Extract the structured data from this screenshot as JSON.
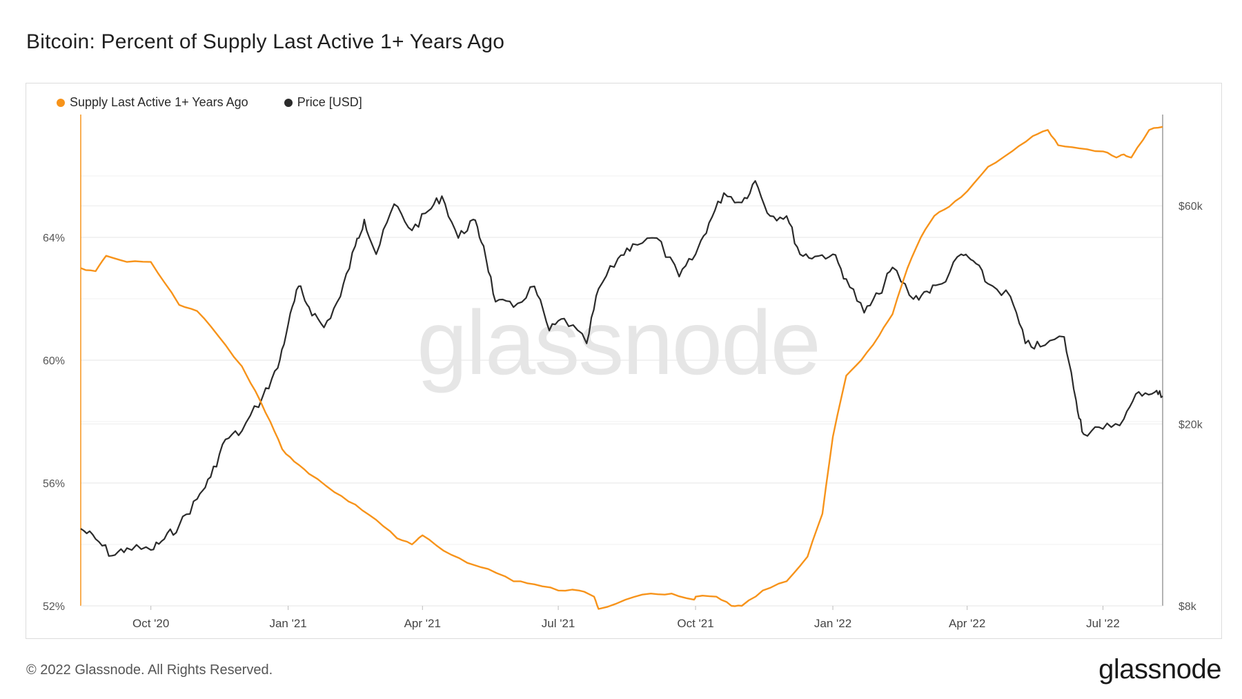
{
  "header": {
    "title": "Bitcoin: Percent of Supply Last Active 1+ Years Ago"
  },
  "legend": {
    "items": [
      {
        "label": "Supply Last Active 1+ Years Ago",
        "color": "#f7931a"
      },
      {
        "label": "Price [USD]",
        "color": "#2b2b2b"
      }
    ]
  },
  "watermark": "glassnode",
  "footer": {
    "copyright": "© 2022 Glassnode. All Rights Reserved.",
    "logo": "glassnode"
  },
  "chart_data": {
    "type": "line",
    "title": "Bitcoin: Percent of Supply Last Active 1+ Years Ago",
    "x_ticks": [
      "Oct '20",
      "Jan '21",
      "Apr '21",
      "Jul '21",
      "Oct '21",
      "Jan '22",
      "Apr '22",
      "Jul '22"
    ],
    "x_range": [
      "2020-08-15",
      "2022-08-10"
    ],
    "y_left": {
      "ticks": [
        "52%",
        "56%",
        "60%",
        "64%"
      ],
      "tick_values": [
        52,
        56,
        60,
        64
      ],
      "range": [
        52,
        68
      ],
      "unit": "%"
    },
    "y_right": {
      "ticks": [
        "$8k",
        "$20k",
        "$60k"
      ],
      "tick_values": [
        8000,
        20000,
        60000
      ],
      "range": [
        8000,
        95000
      ],
      "scale": "log"
    },
    "grid": true,
    "legend_position": "top-left",
    "series": [
      {
        "name": "Supply Last Active 1+ Years Ago",
        "axis": "left",
        "color": "#f7931a",
        "x": [
          "2020-08-15",
          "2020-08-25",
          "2020-09-01",
          "2020-09-15",
          "2020-10-01",
          "2020-10-15",
          "2020-10-20",
          "2020-11-01",
          "2020-11-15",
          "2020-12-01",
          "2020-12-10",
          "2020-12-20",
          "2020-12-28",
          "2021-01-05",
          "2021-01-15",
          "2021-02-01",
          "2021-02-15",
          "2021-03-01",
          "2021-03-15",
          "2021-03-25",
          "2021-04-01",
          "2021-04-15",
          "2021-05-01",
          "2021-05-15",
          "2021-06-01",
          "2021-06-15",
          "2021-07-01",
          "2021-07-15",
          "2021-07-25",
          "2021-07-28",
          "2021-08-15",
          "2021-09-01",
          "2021-09-15",
          "2021-09-30",
          "2021-10-01",
          "2021-10-15",
          "2021-10-25",
          "2021-11-01",
          "2021-11-15",
          "2021-12-01",
          "2021-12-15",
          "2021-12-25",
          "2022-01-01",
          "2022-01-10",
          "2022-01-20",
          "2022-02-01",
          "2022-02-10",
          "2022-02-20",
          "2022-03-01",
          "2022-03-10",
          "2022-03-20",
          "2022-04-01",
          "2022-04-15",
          "2022-05-01",
          "2022-05-15",
          "2022-05-25",
          "2022-06-01",
          "2022-06-15",
          "2022-07-01",
          "2022-07-10",
          "2022-07-15",
          "2022-07-20",
          "2022-08-01",
          "2022-08-10"
        ],
        "values": [
          63.0,
          62.9,
          63.4,
          63.2,
          63.2,
          62.2,
          61.8,
          61.6,
          60.8,
          59.8,
          59.0,
          58.0,
          57.1,
          56.7,
          56.3,
          55.7,
          55.3,
          54.8,
          54.2,
          54.0,
          54.3,
          53.8,
          53.4,
          53.2,
          52.8,
          52.7,
          52.5,
          52.5,
          52.3,
          51.9,
          52.2,
          52.4,
          52.4,
          52.2,
          52.3,
          52.3,
          52.0,
          52.0,
          52.5,
          52.8,
          53.6,
          55.0,
          57.5,
          59.5,
          60.0,
          60.8,
          61.5,
          63.0,
          64.0,
          64.7,
          65.0,
          65.5,
          66.3,
          66.8,
          67.3,
          67.5,
          67.0,
          66.9,
          66.8,
          66.6,
          66.7,
          66.6,
          67.5,
          67.6
        ]
      },
      {
        "name": "Price [USD]",
        "axis": "right",
        "color": "#2b2b2b",
        "x": [
          "2020-08-15",
          "2020-08-25",
          "2020-09-05",
          "2020-09-15",
          "2020-10-01",
          "2020-10-10",
          "2020-10-20",
          "2020-11-01",
          "2020-11-10",
          "2020-11-20",
          "2020-12-01",
          "2020-12-15",
          "2020-12-25",
          "2021-01-01",
          "2021-01-08",
          "2021-01-15",
          "2021-01-25",
          "2021-02-05",
          "2021-02-15",
          "2021-02-21",
          "2021-03-01",
          "2021-03-13",
          "2021-03-25",
          "2021-04-05",
          "2021-04-14",
          "2021-04-25",
          "2021-05-05",
          "2021-05-12",
          "2021-05-20",
          "2021-06-01",
          "2021-06-15",
          "2021-06-25",
          "2021-07-05",
          "2021-07-20",
          "2021-07-28",
          "2021-08-10",
          "2021-08-20",
          "2021-09-05",
          "2021-09-20",
          "2021-10-01",
          "2021-10-10",
          "2021-10-20",
          "2021-11-01",
          "2021-11-10",
          "2021-11-20",
          "2021-12-01",
          "2021-12-10",
          "2021-12-20",
          "2022-01-01",
          "2022-01-10",
          "2022-01-22",
          "2022-02-01",
          "2022-02-10",
          "2022-02-24",
          "2022-03-05",
          "2022-03-15",
          "2022-03-28",
          "2022-04-05",
          "2022-04-15",
          "2022-04-30",
          "2022-05-10",
          "2022-05-20",
          "2022-06-05",
          "2022-06-13",
          "2022-06-18",
          "2022-07-01",
          "2022-07-15",
          "2022-07-25",
          "2022-08-05",
          "2022-08-10"
        ],
        "values": [
          11800,
          11200,
          10300,
          10700,
          10600,
          11200,
          12000,
          13700,
          15300,
          18500,
          19300,
          23000,
          26500,
          33000,
          40000,
          36000,
          32500,
          38000,
          49000,
          56000,
          47000,
          60500,
          53000,
          58500,
          63000,
          51000,
          56000,
          49000,
          37000,
          36000,
          40000,
          32000,
          34000,
          30000,
          39500,
          46000,
          49500,
          51000,
          42000,
          47000,
          55000,
          64000,
          61000,
          68000,
          57000,
          57000,
          47000,
          46500,
          47000,
          41500,
          35000,
          38500,
          44000,
          37500,
          39000,
          40500,
          47000,
          45500,
          40500,
          38000,
          30000,
          29500,
          31000,
          22500,
          19000,
          19500,
          20500,
          23500,
          23500,
          23000
        ]
      }
    ]
  }
}
